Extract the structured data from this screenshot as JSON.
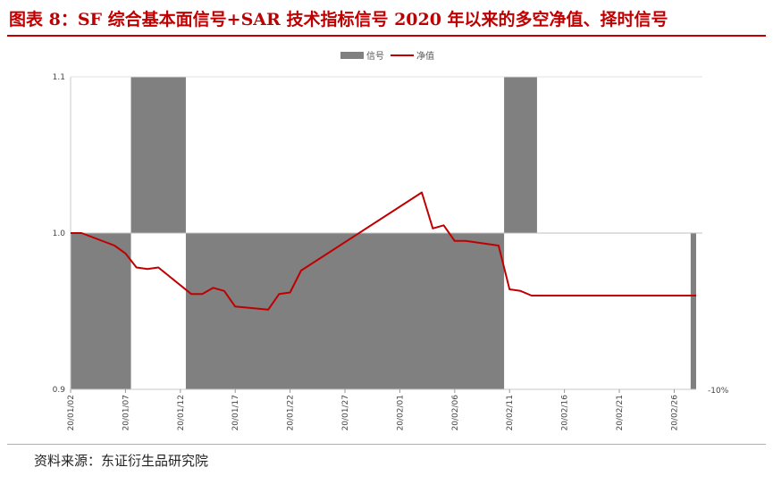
{
  "title": "图表 8：SF 综合基本面信号+SAR 技术指标信号 2020 年以来的多空净值、择时信号",
  "source": "资料来源：东证衍生品研究院",
  "chart_data": {
    "type": "area",
    "legend": [
      {
        "name": "信号",
        "color": "#808080",
        "kind": "area"
      },
      {
        "name": "净值",
        "color": "#c00000",
        "kind": "line"
      }
    ],
    "legend_position": "top-center",
    "y_left": {
      "ticks": [
        "1.1",
        "1.0",
        "0.9"
      ],
      "range": [
        0.9,
        1.1
      ]
    },
    "y_right": {
      "ticks": [
        "-10%"
      ]
    },
    "x_tick_labels": [
      "20/01/02",
      "20/01/07",
      "20/01/12",
      "20/01/17",
      "20/01/22",
      "20/01/27",
      "20/02/01",
      "20/02/06",
      "20/02/11",
      "20/02/16",
      "20/02/21",
      "20/02/26"
    ],
    "x_range": [
      "2020-01-02",
      "2020-02-28"
    ],
    "signal": [
      {
        "start": "2020-01-02",
        "end": "2020-01-07",
        "value": -1
      },
      {
        "start": "2020-01-08",
        "end": "2020-01-12",
        "value": 1
      },
      {
        "start": "2020-01-13",
        "end": "2020-02-10",
        "value": -1
      },
      {
        "start": "2020-02-11",
        "end": "2020-02-13",
        "value": 1
      },
      {
        "start": "2020-02-14",
        "end": "2020-02-27",
        "value": 0
      },
      {
        "start": "2020-02-28",
        "end": "2020-02-28",
        "value": -1
      }
    ],
    "nav": {
      "x": [
        "2020-01-02",
        "2020-01-03",
        "2020-01-06",
        "2020-01-07",
        "2020-01-08",
        "2020-01-09",
        "2020-01-10",
        "2020-01-13",
        "2020-01-14",
        "2020-01-15",
        "2020-01-16",
        "2020-01-17",
        "2020-01-20",
        "2020-01-21",
        "2020-01-22",
        "2020-01-23",
        "2020-02-03",
        "2020-02-04",
        "2020-02-05",
        "2020-02-06",
        "2020-02-07",
        "2020-02-10",
        "2020-02-11",
        "2020-02-12",
        "2020-02-13",
        "2020-02-14",
        "2020-02-17",
        "2020-02-18",
        "2020-02-19",
        "2020-02-20",
        "2020-02-21",
        "2020-02-24",
        "2020-02-25",
        "2020-02-26",
        "2020-02-27",
        "2020-02-28"
      ],
      "values": [
        1.0,
        1.0,
        0.992,
        0.987,
        0.978,
        0.977,
        0.978,
        0.961,
        0.961,
        0.965,
        0.963,
        0.953,
        0.951,
        0.961,
        0.962,
        0.976,
        1.026,
        1.003,
        1.005,
        0.995,
        0.995,
        0.992,
        0.964,
        0.963,
        0.96,
        0.96,
        0.96,
        0.96,
        0.96,
        0.96,
        0.96,
        0.96,
        0.96,
        0.96,
        0.96,
        0.96
      ]
    }
  }
}
